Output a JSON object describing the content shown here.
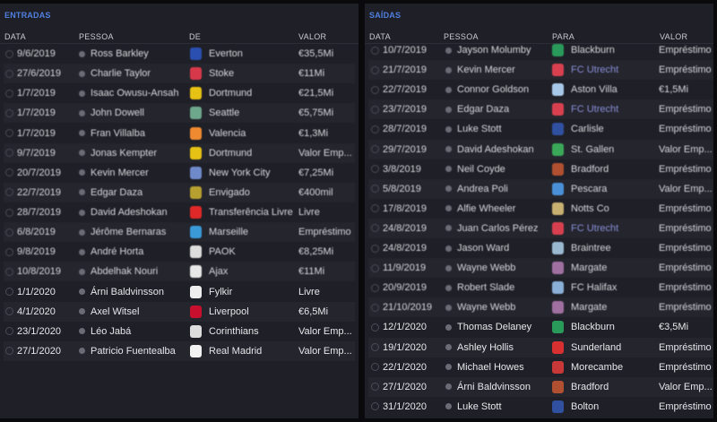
{
  "entradas": {
    "title": "ENTRADAS",
    "headers": {
      "date": "DATA",
      "person": "PESSOA",
      "club": "DE",
      "value": "VALOR"
    },
    "rows": [
      {
        "date": "9/6/2019",
        "person": "Ross Barkley",
        "club": "Everton",
        "value": "€35,5Mi",
        "color": "#2a4fb0",
        "recent": false
      },
      {
        "date": "27/6/2019",
        "person": "Charlie Taylor",
        "club": "Stoke",
        "value": "€11Mi",
        "color": "#d8394a",
        "recent": false
      },
      {
        "date": "1/7/2019",
        "person": "Isaac Owusu-Ansah",
        "club": "Dortmund",
        "value": "€21,5Mi",
        "color": "#e6c215",
        "recent": false
      },
      {
        "date": "1/7/2019",
        "person": "John Dowell",
        "club": "Seattle",
        "value": "€5,75Mi",
        "color": "#6ea88c",
        "recent": false
      },
      {
        "date": "1/7/2019",
        "person": "Fran Villalba",
        "club": "Valencia",
        "value": "€1,3Mi",
        "color": "#f08a30",
        "recent": false
      },
      {
        "date": "9/7/2019",
        "person": "Jonas Kempter",
        "club": "Dortmund",
        "value": "Valor Emp...",
        "color": "#e6c215",
        "recent": false
      },
      {
        "date": "20/7/2019",
        "person": "Kevin Mercer",
        "club": "New York City",
        "value": "€7,25Mi",
        "color": "#6f8ac8",
        "recent": false
      },
      {
        "date": "22/7/2019",
        "person": "Edgar Daza",
        "club": "Envigado",
        "value": "€400mil",
        "color": "#b8a030",
        "recent": false
      },
      {
        "date": "28/7/2019",
        "person": "David Adeshokan",
        "club": "Transferência Livre",
        "value": "Livre",
        "color": "#e02828",
        "recent": false
      },
      {
        "date": "6/8/2019",
        "person": "Jérôme Bernaras",
        "club": "Marseille",
        "value": "Empréstimo",
        "color": "#3a9ad8",
        "recent": false
      },
      {
        "date": "9/8/2019",
        "person": "André Horta",
        "club": "PAOK",
        "value": "€8,25Mi",
        "color": "#dddddd",
        "recent": false
      },
      {
        "date": "10/8/2019",
        "person": "Abdelhak Nouri",
        "club": "Ajax",
        "value": "€11Mi",
        "color": "#e8e8e8",
        "recent": false
      },
      {
        "date": "1/1/2020",
        "person": "Árni Baldvinsson",
        "club": "Fylkir",
        "value": "Livre",
        "color": "#eeeeee",
        "recent": true
      },
      {
        "date": "4/1/2020",
        "person": "Axel Witsel",
        "club": "Liverpool",
        "value": "€6,5Mi",
        "color": "#c8102e",
        "recent": true
      },
      {
        "date": "23/1/2020",
        "person": "Léo Jabá",
        "club": "Corinthians",
        "value": "Valor Emp...",
        "color": "#dddddd",
        "recent": true
      },
      {
        "date": "27/1/2020",
        "person": "Patricio Fuentealba",
        "club": "Real Madrid",
        "value": "Valor Emp...",
        "color": "#f2f2f2",
        "recent": true
      }
    ]
  },
  "saidas": {
    "title": "SAÍDAS",
    "headers": {
      "date": "DATA",
      "person": "PESSOA",
      "club": "PARA",
      "value": "VALOR"
    },
    "rows": [
      {
        "date": "10/7/2019",
        "person": "Jayson Molumby",
        "club": "Blackburn",
        "value": "Empréstimo",
        "color": "#2a9a5a",
        "recent": false,
        "link": false
      },
      {
        "date": "21/7/2019",
        "person": "Kevin Mercer",
        "club": "FC Utrecht",
        "value": "Empréstimo",
        "color": "#d84050",
        "recent": false,
        "link": true
      },
      {
        "date": "22/7/2019",
        "person": "Connor Goldson",
        "club": "Aston Villa",
        "value": "€1,5Mi",
        "color": "#a8c8e8",
        "recent": false,
        "link": false
      },
      {
        "date": "23/7/2019",
        "person": "Edgar Daza",
        "club": "FC Utrecht",
        "value": "Empréstimo",
        "color": "#d84050",
        "recent": false,
        "link": true
      },
      {
        "date": "28/7/2019",
        "person": "Luke Stott",
        "club": "Carlisle",
        "value": "Empréstimo",
        "color": "#3050a0",
        "recent": false,
        "link": false
      },
      {
        "date": "29/7/2019",
        "person": "David Adeshokan",
        "club": "St. Gallen",
        "value": "Valor Emp...",
        "color": "#3aa858",
        "recent": false,
        "link": false
      },
      {
        "date": "3/8/2019",
        "person": "Neil Coyde",
        "club": "Bradford",
        "value": "Empréstimo",
        "color": "#b05030",
        "recent": false,
        "link": false
      },
      {
        "date": "5/8/2019",
        "person": "Andrea Poli",
        "club": "Pescara",
        "value": "Valor Emp...",
        "color": "#4a90d8",
        "recent": false,
        "link": false
      },
      {
        "date": "17/8/2019",
        "person": "Alfie Wheeler",
        "club": "Notts Co",
        "value": "Empréstimo",
        "color": "#c8b070",
        "recent": false,
        "link": false
      },
      {
        "date": "24/8/2019",
        "person": "Juan Carlos Pérez",
        "club": "FC Utrecht",
        "value": "Empréstimo",
        "color": "#d84050",
        "recent": false,
        "link": true
      },
      {
        "date": "24/8/2019",
        "person": "Jason Ward",
        "club": "Braintree",
        "value": "Empréstimo",
        "color": "#9ab8d0",
        "recent": false,
        "link": false
      },
      {
        "date": "11/9/2019",
        "person": "Wayne Webb",
        "club": "Margate",
        "value": "Empréstimo",
        "color": "#a070a0",
        "recent": false,
        "link": false
      },
      {
        "date": "20/9/2019",
        "person": "Robert Slade",
        "club": "FC Halifax",
        "value": "Empréstimo",
        "color": "#8ab0d8",
        "recent": false,
        "link": false
      },
      {
        "date": "21/10/2019",
        "person": "Wayne Webb",
        "club": "Margate",
        "value": "Empréstimo",
        "color": "#a070a0",
        "recent": false,
        "link": false
      },
      {
        "date": "12/1/2020",
        "person": "Thomas Delaney",
        "club": "Blackburn",
        "value": "€3,5Mi",
        "color": "#2a9a5a",
        "recent": true,
        "link": false
      },
      {
        "date": "19/1/2020",
        "person": "Ashley Hollis",
        "club": "Sunderland",
        "value": "Empréstimo",
        "color": "#d83030",
        "recent": true,
        "link": false
      },
      {
        "date": "22/1/2020",
        "person": "Michael Howes",
        "club": "Morecambe",
        "value": "Empréstimo",
        "color": "#c83838",
        "recent": true,
        "link": false
      },
      {
        "date": "27/1/2020",
        "person": "Árni Baldvinsson",
        "club": "Bradford",
        "value": "Valor Emp...",
        "color": "#b05030",
        "recent": true,
        "link": false
      },
      {
        "date": "31/1/2020",
        "person": "Luke Stott",
        "club": "Bolton",
        "value": "Empréstimo",
        "color": "#3050a0",
        "recent": true,
        "link": false
      }
    ]
  }
}
